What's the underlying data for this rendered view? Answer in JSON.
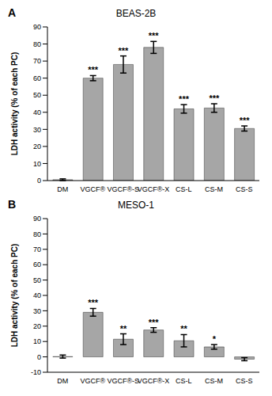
{
  "chart_data": [
    {
      "type": "bar",
      "panel": "A",
      "title": "BEAS-2B",
      "y_label": "LDH activity (% of each PC)",
      "categories": [
        "DM",
        "VGCF®",
        "VGCF®-S",
        "VGCF®-X",
        "CS-L",
        "CS-M",
        "CS-S"
      ],
      "values": [
        0.5,
        60,
        68,
        78,
        42,
        42.5,
        30.5
      ],
      "errors": [
        0.5,
        1.5,
        5,
        3.5,
        2.5,
        2.5,
        1.5
      ],
      "significance": [
        null,
        "***",
        "***",
        "***",
        "***",
        "***",
        "***"
      ],
      "color": "#a6a6a6",
      "ylim": [
        0,
        90
      ],
      "yticks": [
        0,
        10,
        20,
        30,
        40,
        50,
        60,
        70,
        80,
        90
      ],
      "grid": false
    },
    {
      "type": "bar",
      "panel": "B",
      "title": "MESO-1",
      "y_label": "LDH activity (% of each PC)",
      "categories": [
        "DM",
        "VGCF®",
        "VGCF®-S",
        "VGCF®-X",
        "CS-L",
        "CS-M",
        "CS-S"
      ],
      "values": [
        0.2,
        29,
        11.5,
        17.5,
        10.5,
        6.5,
        -1.5
      ],
      "errors": [
        1,
        2.5,
        3.5,
        1.5,
        4,
        1.5,
        1
      ],
      "significance": [
        null,
        "***",
        "**",
        "***",
        "**",
        "*",
        null
      ],
      "color": "#a6a6a6",
      "ylim": [
        -10,
        90
      ],
      "yticks": [
        -10,
        0,
        10,
        20,
        30,
        40,
        50,
        60,
        70,
        80,
        90
      ],
      "grid": false
    }
  ]
}
